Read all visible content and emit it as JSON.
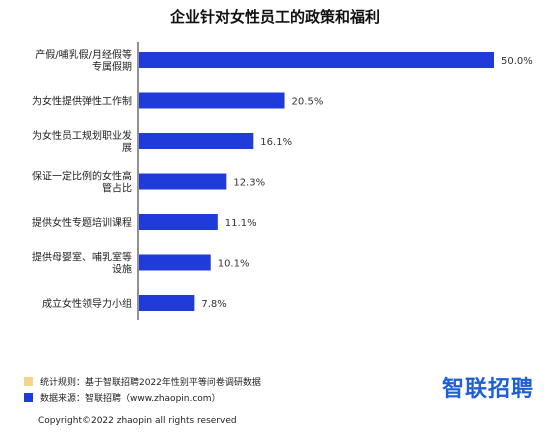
{
  "chart_data": {
    "type": "bar",
    "orientation": "horizontal",
    "title": "企业针对女性员工的政策和福利",
    "categories": [
      [
        "产假/哺乳假/月经假等",
        "专属假期"
      ],
      [
        "为女性提供弹性工作制"
      ],
      [
        "为女性员工规划职业发",
        "展"
      ],
      [
        "保证一定比例的女性高",
        "管占比"
      ],
      [
        "提供女性专题培训课程"
      ],
      [
        "提供母婴室、哺乳室等",
        "设施"
      ],
      [
        "成立女性领导力小组"
      ]
    ],
    "values": [
      50.0,
      20.5,
      16.1,
      12.3,
      11.1,
      10.1,
      7.8
    ],
    "value_labels": [
      "50.0%",
      "20.5%",
      "16.1%",
      "12.3%",
      "11.1%",
      "10.1%",
      "7.8%"
    ],
    "xlim": [
      0,
      50
    ],
    "bar_color": "#1f3bd9",
    "grid": false
  },
  "legend": [
    {
      "text": "统计规则：基于智联招聘2022年性别平等问卷调研数据",
      "color": "#f5d58a"
    },
    {
      "text": "数据来源：智联招聘（www.zhaopin.com）",
      "color": "#1f3bd9"
    }
  ],
  "brand": "智联招聘",
  "copyright": "Copyright©2022 zhaopin all rights reserved"
}
